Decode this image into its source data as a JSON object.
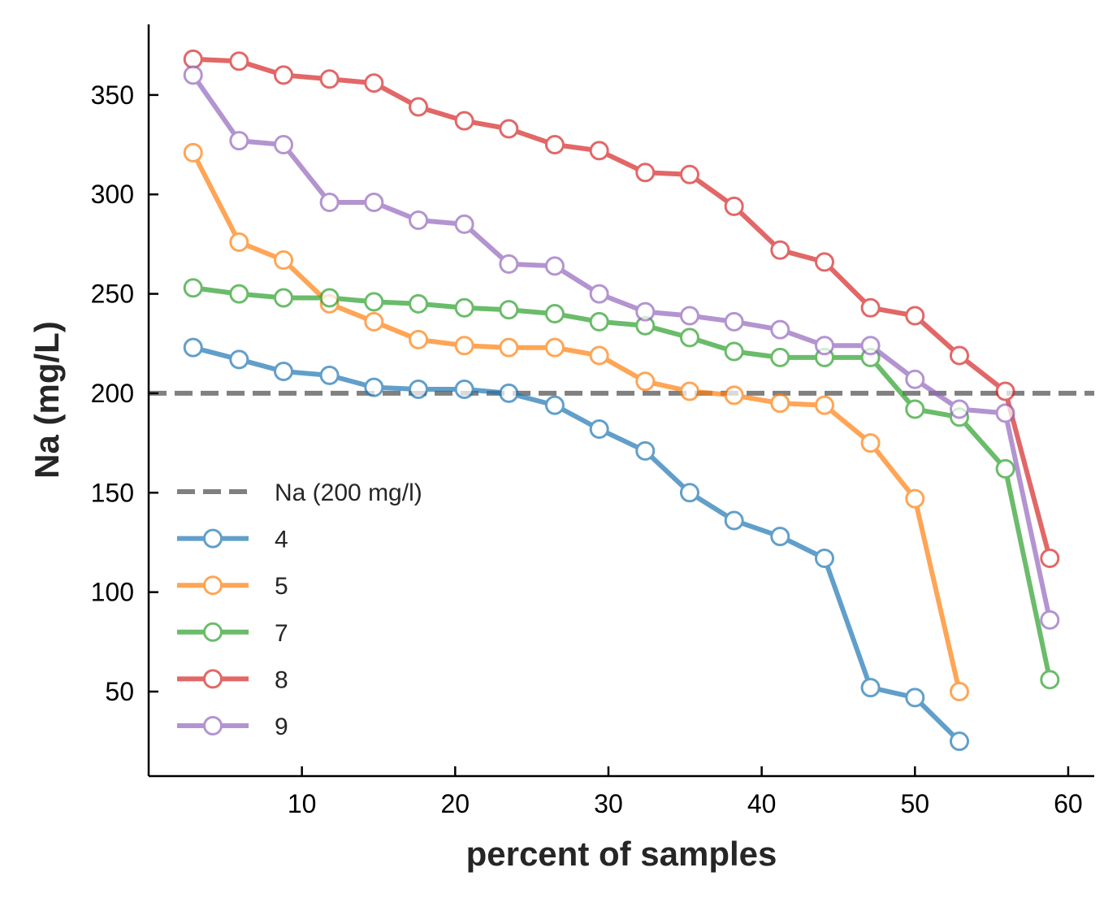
{
  "chart_data": {
    "type": "line",
    "xlabel": "percent of samples",
    "ylabel": "Na (mg/L)",
    "xlim": [
      0,
      61.7
    ],
    "ylim": [
      7.5,
      385.5
    ],
    "xticks": [
      10,
      20,
      30,
      40,
      50,
      60
    ],
    "yticks": [
      50,
      100,
      150,
      200,
      250,
      300,
      350
    ],
    "grid": false,
    "legend_position": "lower-left",
    "reference_line": {
      "name": "Na (200 mg/l)",
      "y": 200,
      "color": "#808080",
      "style": "dashed"
    },
    "series": [
      {
        "name": "4",
        "color": "#1f77b4",
        "x": [
          2.9,
          5.9,
          8.8,
          11.8,
          14.7,
          17.6,
          20.6,
          23.5,
          26.5,
          29.4,
          32.4,
          35.3,
          38.2,
          41.2,
          44.1,
          47.1,
          50.0,
          52.9
        ],
        "values": [
          223,
          217,
          211,
          209,
          203,
          202,
          202,
          200,
          194,
          182,
          171,
          150,
          136,
          128,
          117,
          52,
          47,
          25
        ]
      },
      {
        "name": "5",
        "color": "#ff7f0e",
        "x": [
          2.9,
          5.9,
          8.8,
          11.8,
          14.7,
          17.6,
          20.6,
          23.5,
          26.5,
          29.4,
          32.4,
          35.3,
          38.2,
          41.2,
          44.1,
          47.1,
          50.0,
          52.9
        ],
        "values": [
          321,
          276,
          267,
          245,
          236,
          227,
          224,
          223,
          223,
          219,
          206,
          201,
          199,
          195,
          194,
          175,
          147,
          50
        ]
      },
      {
        "name": "7",
        "color": "#2ca02c",
        "x": [
          2.9,
          5.9,
          8.8,
          11.8,
          14.7,
          17.6,
          20.6,
          23.5,
          26.5,
          29.4,
          32.4,
          35.3,
          38.2,
          41.2,
          44.1,
          47.1,
          50.0,
          52.9,
          55.9,
          58.8
        ],
        "values": [
          253,
          250,
          248,
          248,
          246,
          245,
          243,
          242,
          240,
          236,
          234,
          228,
          221,
          218,
          218,
          218,
          192,
          188,
          162,
          56
        ]
      },
      {
        "name": "8",
        "color": "#d62728",
        "x": [
          2.9,
          5.9,
          8.8,
          11.8,
          14.7,
          17.6,
          20.6,
          23.5,
          26.5,
          29.4,
          32.4,
          35.3,
          38.2,
          41.2,
          44.1,
          47.1,
          50.0,
          52.9,
          55.9,
          58.8
        ],
        "values": [
          368,
          367,
          360,
          358,
          356,
          344,
          337,
          333,
          325,
          322,
          311,
          310,
          294,
          272,
          266,
          243,
          239,
          219,
          201,
          117
        ]
      },
      {
        "name": "9",
        "color": "#9467bd",
        "x": [
          2.9,
          5.9,
          8.8,
          11.8,
          14.7,
          17.6,
          20.6,
          23.5,
          26.5,
          29.4,
          32.4,
          35.3,
          38.2,
          41.2,
          44.1,
          47.1,
          50.0,
          52.9,
          55.9,
          58.8
        ],
        "values": [
          360,
          327,
          325,
          296,
          296,
          287,
          285,
          265,
          264,
          250,
          241,
          239,
          236,
          232,
          224,
          224,
          207,
          192,
          190,
          86
        ]
      }
    ]
  }
}
